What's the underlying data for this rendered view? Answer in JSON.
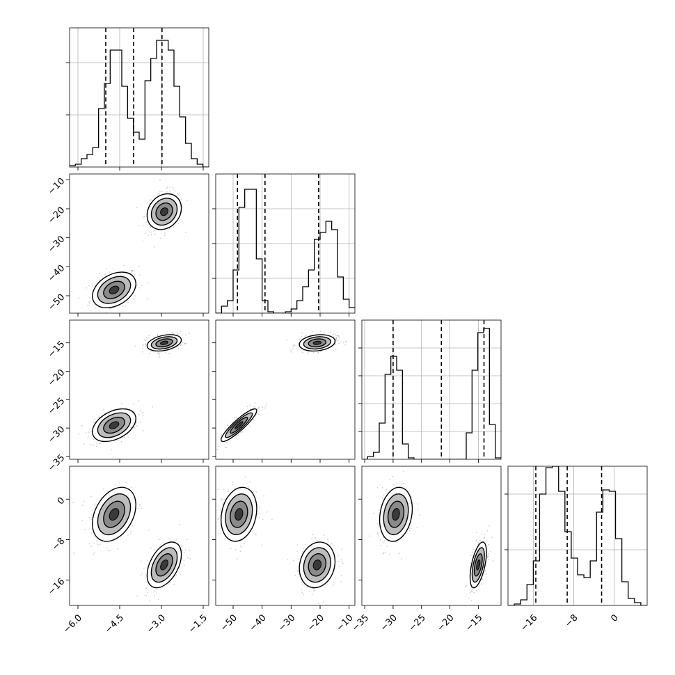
{
  "chart_data": {
    "type": "corner",
    "grid": true,
    "params": [
      {
        "range": [
          -6.3,
          -1.3
        ],
        "ticks": [
          -6.0,
          -4.5,
          -3.0,
          -1.5
        ],
        "tick_labels": [
          "−6.0",
          "−4.5",
          "−3.0",
          "−1.5"
        ],
        "quantiles": [
          -5.0,
          -4.0,
          -2.98
        ],
        "hist": [
          0.01,
          0.02,
          0.06,
          0.09,
          0.14,
          0.42,
          0.6,
          0.84,
          0.84,
          0.58,
          0.35,
          0.25,
          0.2,
          0.62,
          0.78,
          0.91,
          0.91,
          0.84,
          0.58,
          0.36,
          0.17,
          0.06,
          0.02,
          0.0
        ],
        "hist_ticks": [
          0.75,
          0.375
        ]
      },
      {
        "range": [
          -56,
          -8
        ],
        "ticks": [
          -50,
          -40,
          -30,
          -20,
          -10
        ],
        "tick_labels": [
          "−50",
          "−40",
          "−30",
          "−20",
          "−10"
        ],
        "quantiles": [
          -48.5,
          -39.0,
          -20.5
        ],
        "hist": [
          0.0,
          0.05,
          0.09,
          0.31,
          0.76,
          0.89,
          0.89,
          0.39,
          0.09,
          0.01,
          0.0,
          0.0,
          0.01,
          0.03,
          0.09,
          0.19,
          0.31,
          0.53,
          0.58,
          0.66,
          0.6,
          0.26,
          0.1,
          0.04
        ],
        "hist_ticks": [
          0.75,
          0.5,
          0.25
        ]
      },
      {
        "range": [
          -35.5,
          -11
        ],
        "ticks": [
          -35,
          -30,
          -25,
          -20,
          -15
        ],
        "tick_labels": [
          "−35",
          "−30",
          "−25",
          "−20",
          "−15"
        ],
        "quantiles": [
          -30.0,
          -21.5,
          -14.0
        ],
        "hist": [
          0.0,
          0.02,
          0.05,
          0.26,
          0.61,
          0.74,
          0.64,
          0.11,
          0.01,
          0.0,
          0.0,
          0.0,
          0.0,
          0.0,
          0.0,
          0.0,
          0.0,
          0.0,
          0.19,
          0.64,
          0.91,
          0.94,
          0.25,
          0.01
        ],
        "hist_ticks": [
          0.8,
          0.6,
          0.4,
          0.2
        ]
      },
      {
        "range": [
          -21,
          6.5
        ],
        "ticks": [
          -16,
          -8,
          0
        ],
        "tick_labels": [
          "−16",
          "−8",
          "0"
        ],
        "quantiles": [
          -15.5,
          -9.3,
          -2.5
        ],
        "hist": [
          0.0,
          0.01,
          0.04,
          0.15,
          0.32,
          0.8,
          0.99,
          1.0,
          0.82,
          0.53,
          0.34,
          0.22,
          0.2,
          0.32,
          0.67,
          0.83,
          0.82,
          0.48,
          0.17,
          0.05,
          0.02,
          0.0
        ],
        "hist_ticks": [
          0.8,
          0.4
        ]
      }
    ],
    "row_tick_labels": [
      [],
      [
        "−10",
        "−20",
        "−30",
        "−40",
        "−50"
      ],
      [
        "−15",
        "−20",
        "−25",
        "−30",
        "−35"
      ],
      [
        "0",
        "−8",
        "−16"
      ]
    ],
    "row_ticks": [
      [],
      [
        -10,
        -20,
        -30,
        -40,
        -50
      ],
      [
        -15,
        -20,
        -25,
        -30,
        -35
      ],
      [
        0,
        -8,
        -16
      ]
    ],
    "modes": [
      [
        -4.7,
        -48,
        -29.5,
        -3
      ],
      [
        -2.9,
        -21,
        -15,
        -13
      ]
    ],
    "mode_spread": [
      [
        0.38,
        3.0,
        1.4,
        2.6
      ],
      [
        0.3,
        3.0,
        0.7,
        2.2
      ]
    ],
    "correlations": [
      [
        [
          1,
          0.35,
          0.4,
          0.35
        ],
        [
          0.35,
          1,
          0.9,
          0.2
        ],
        [
          0.4,
          0.9,
          1,
          0.2
        ],
        [
          0.35,
          0.2,
          0.2,
          1
        ]
      ],
      [
        [
          1,
          0.2,
          0.35,
          0.45
        ],
        [
          0.2,
          1,
          0.2,
          0.15
        ],
        [
          0.35,
          0.2,
          1,
          0.55
        ],
        [
          0.45,
          0.15,
          0.55,
          1
        ]
      ]
    ]
  }
}
